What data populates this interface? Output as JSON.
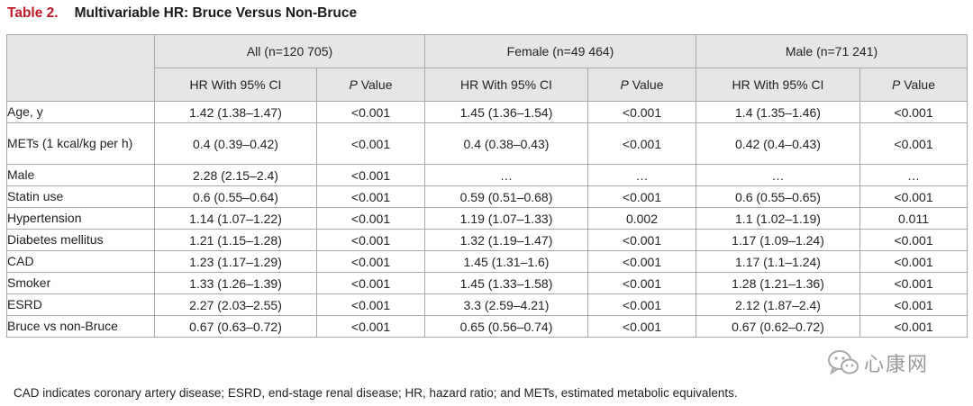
{
  "title": {
    "label": "Table 2.",
    "text": "Multivariable HR: Bruce Versus Non-Bruce"
  },
  "groups": [
    "All (n=120 705)",
    "Female (n=49 464)",
    "Male (n=71 241)"
  ],
  "subheaders": {
    "hr": "HR With 95% CI",
    "p_italic": "P",
    "p_rest": " Value"
  },
  "rows": [
    {
      "label": "Age, y",
      "cells": [
        "1.42 (1.38–1.47)",
        "<0.001",
        "1.45 (1.36–1.54)",
        "<0.001",
        "1.4 (1.35–1.46)",
        "<0.001"
      ]
    },
    {
      "label": "METs (1 kcal/kg per h)",
      "cells": [
        "0.4 (0.39–0.42)",
        "<0.001",
        "0.4 (0.38–0.43)",
        "<0.001",
        "0.42 (0.4–0.43)",
        "<0.001"
      ]
    },
    {
      "label": "Male",
      "cells": [
        "2.28 (2.15–2.4)",
        "<0.001",
        "…",
        "…",
        "…",
        "…"
      ]
    },
    {
      "label": "Statin use",
      "cells": [
        "0.6 (0.55–0.64)",
        "<0.001",
        "0.59 (0.51–0.68)",
        "<0.001",
        "0.6 (0.55–0.65)",
        "<0.001"
      ]
    },
    {
      "label": "Hypertension",
      "cells": [
        "1.14 (1.07–1.22)",
        "<0.001",
        "1.19 (1.07–1.33)",
        "0.002",
        "1.1 (1.02–1.19)",
        "0.011"
      ]
    },
    {
      "label": "Diabetes mellitus",
      "cells": [
        "1.21 (1.15–1.28)",
        "<0.001",
        "1.32 (1.19–1.47)",
        "<0.001",
        "1.17 (1.09–1.24)",
        "<0.001"
      ]
    },
    {
      "label": "CAD",
      "cells": [
        "1.23 (1.17–1.29)",
        "<0.001",
        "1.45 (1.31–1.6)",
        "<0.001",
        "1.17 (1.1–1.24)",
        "<0.001"
      ]
    },
    {
      "label": "Smoker",
      "cells": [
        "1.33 (1.26–1.39)",
        "<0.001",
        "1.45 (1.33–1.58)",
        "<0.001",
        "1.28 (1.21–1.36)",
        "<0.001"
      ]
    },
    {
      "label": "ESRD",
      "cells": [
        "2.27 (2.03–2.55)",
        "<0.001",
        "3.3 (2.59–4.21)",
        "<0.001",
        "2.12 (1.87–2.4)",
        "<0.001"
      ]
    },
    {
      "label": "Bruce vs non-Bruce",
      "cells": [
        "0.67 (0.63–0.72)",
        "<0.001",
        "0.65 (0.56–0.74)",
        "<0.001",
        "0.67 (0.62–0.72)",
        "<0.001"
      ]
    }
  ],
  "footnote": "CAD indicates coronary artery disease; ESRD, end-stage renal disease; HR, hazard ratio; and METs, estimated metabolic equivalents.",
  "watermark": {
    "text": "心康网",
    "icon": "wechat-icon"
  },
  "colors": {
    "title_label": "#c0192a",
    "header_bg": "#e6e6e6",
    "border": "#a9a9a9"
  }
}
